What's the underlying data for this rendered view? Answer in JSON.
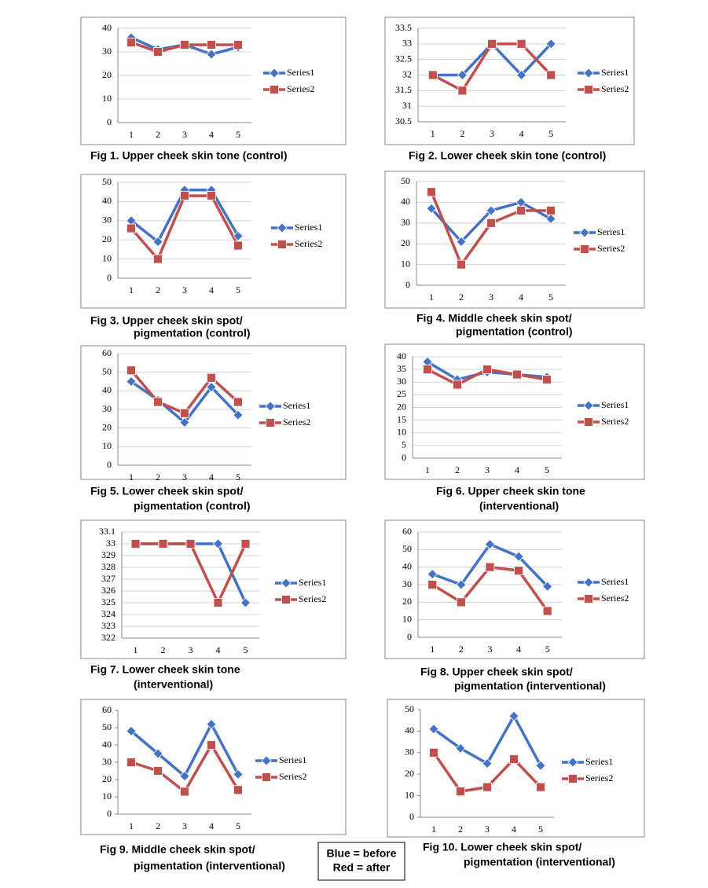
{
  "chart_data": [
    {
      "type": "line",
      "caption": [
        "Fig 1. Upper cheek skin tone (control)"
      ],
      "categories": [
        "1",
        "2",
        "3",
        "4",
        "5"
      ],
      "series": [
        {
          "name": "Series1",
          "color": "#4472c4",
          "marker": "diamond",
          "values": [
            36,
            31,
            33,
            29,
            32
          ]
        },
        {
          "name": "Series2",
          "color": "#c0504d",
          "marker": "square",
          "values": [
            34,
            30,
            33,
            33,
            33
          ]
        }
      ],
      "ylim": [
        0,
        40
      ],
      "yticks": [
        0,
        10,
        20,
        30,
        40
      ],
      "grid": true,
      "legend": "right"
    },
    {
      "type": "line",
      "caption": [
        "Fig 2. Lower cheek skin tone (control)"
      ],
      "categories": [
        "1",
        "2",
        "3",
        "4",
        "5"
      ],
      "series": [
        {
          "name": "Series1",
          "color": "#4472c4",
          "marker": "diamond",
          "values": [
            32,
            32,
            33,
            32,
            33
          ]
        },
        {
          "name": "Series2",
          "color": "#c0504d",
          "marker": "square",
          "values": [
            32,
            31.5,
            33,
            33,
            32
          ]
        }
      ],
      "ylim": [
        30.5,
        33.5
      ],
      "yticks": [
        30.5,
        31,
        31.5,
        32,
        32.5,
        33,
        33.5
      ],
      "grid": true,
      "legend": "right"
    },
    {
      "type": "line",
      "caption": [
        "Fig 3. Upper cheek skin spot/",
        "pigmentation (control)"
      ],
      "categories": [
        "1",
        "2",
        "3",
        "4",
        "5"
      ],
      "series": [
        {
          "name": "Series1",
          "color": "#4472c4",
          "marker": "diamond",
          "values": [
            30,
            19,
            46,
            46,
            22
          ]
        },
        {
          "name": "Series2",
          "color": "#c0504d",
          "marker": "square",
          "values": [
            26,
            10,
            43,
            43,
            17
          ]
        }
      ],
      "ylim": [
        0,
        50
      ],
      "yticks": [
        0,
        10,
        20,
        30,
        40,
        50
      ],
      "grid": true,
      "legend": "right"
    },
    {
      "type": "line",
      "caption": [
        "Fig 4. Middle cheek skin spot/",
        "pigmentation (control)"
      ],
      "categories": [
        "1",
        "2",
        "3",
        "4",
        "5"
      ],
      "series": [
        {
          "name": "Series1",
          "color": "#4472c4",
          "marker": "diamond",
          "values": [
            37,
            21,
            36,
            40,
            32
          ]
        },
        {
          "name": "Series2",
          "color": "#c0504d",
          "marker": "square",
          "values": [
            45,
            10,
            30,
            36,
            36
          ]
        }
      ],
      "ylim": [
        0,
        50
      ],
      "yticks": [
        0,
        10,
        20,
        30,
        40,
        50
      ],
      "grid": true,
      "legend": "right"
    },
    {
      "type": "line",
      "caption": [
        "Fig 5. Lower cheek skin spot/",
        "pigmentation (control)"
      ],
      "categories": [
        "1",
        "2",
        "3",
        "4",
        "5"
      ],
      "series": [
        {
          "name": "Series1",
          "color": "#4472c4",
          "marker": "diamond",
          "values": [
            45,
            35,
            23,
            42,
            27
          ]
        },
        {
          "name": "Series2",
          "color": "#c0504d",
          "marker": "square",
          "values": [
            51,
            34,
            28,
            47,
            34
          ]
        }
      ],
      "ylim": [
        0,
        60
      ],
      "yticks": [
        0,
        10,
        20,
        30,
        40,
        50,
        60
      ],
      "grid": true,
      "legend": "right"
    },
    {
      "type": "line",
      "caption": [
        "Fig 6. Upper cheek skin tone",
        "(interventional)"
      ],
      "categories": [
        "1",
        "2",
        "3",
        "4",
        "5"
      ],
      "series": [
        {
          "name": "Series1",
          "color": "#4472c4",
          "marker": "diamond",
          "values": [
            38,
            31,
            34,
            33,
            32
          ]
        },
        {
          "name": "Series2",
          "color": "#c0504d",
          "marker": "square",
          "values": [
            35,
            29,
            35,
            33,
            31
          ]
        }
      ],
      "ylim": [
        0,
        40
      ],
      "yticks": [
        0,
        5,
        10,
        15,
        20,
        25,
        30,
        35,
        40
      ],
      "grid": true,
      "legend": "right"
    },
    {
      "type": "line",
      "caption": [
        "Fig 7. Lower cheek skin tone",
        "(interventional)"
      ],
      "categories": [
        "1",
        "2",
        "3",
        "4",
        "5"
      ],
      "series": [
        {
          "name": "Series1",
          "color": "#4472c4",
          "marker": "diamond",
          "values": [
            33,
            33,
            33,
            33,
            32.5
          ]
        },
        {
          "name": "Series2",
          "color": "#c0504d",
          "marker": "square",
          "values": [
            33,
            33,
            33,
            32.5,
            33
          ]
        }
      ],
      "ylim": [
        32.2,
        33.1
      ],
      "yticks": [
        {
          "value": 32.2,
          "label": "322"
        },
        {
          "value": 32.3,
          "label": "323"
        },
        {
          "value": 32.4,
          "label": "324"
        },
        {
          "value": 32.5,
          "label": "325"
        },
        {
          "value": 32.6,
          "label": "326"
        },
        {
          "value": 32.7,
          "label": "327"
        },
        {
          "value": 32.8,
          "label": "328"
        },
        {
          "value": 32.9,
          "label": "329"
        },
        33,
        33.1
      ],
      "grid": true,
      "legend": "right"
    },
    {
      "type": "line",
      "caption": [
        "Fig 8. Upper cheek skin spot/",
        "pigmentation (interventional)"
      ],
      "categories": [
        "1",
        "2",
        "3",
        "4",
        "5"
      ],
      "series": [
        {
          "name": "Series1",
          "color": "#4472c4",
          "marker": "diamond",
          "values": [
            36,
            30,
            53,
            46,
            29
          ]
        },
        {
          "name": "Series2",
          "color": "#c0504d",
          "marker": "square",
          "values": [
            30,
            20,
            40,
            38,
            15
          ]
        }
      ],
      "ylim": [
        0,
        60
      ],
      "yticks": [
        0,
        10,
        20,
        30,
        40,
        50,
        60
      ],
      "grid": true,
      "legend": "right"
    },
    {
      "type": "line",
      "caption": [
        "Fig 9. Middle cheek skin spot/",
        "pigmentation (interventional)"
      ],
      "categories": [
        "1",
        "2",
        "3",
        "4",
        "5"
      ],
      "series": [
        {
          "name": "Series1",
          "color": "#4472c4",
          "marker": "diamond",
          "values": [
            48,
            35,
            22,
            52,
            23
          ]
        },
        {
          "name": "Series2",
          "color": "#c0504d",
          "marker": "square",
          "values": [
            30,
            25,
            13,
            40,
            14
          ]
        }
      ],
      "ylim": [
        0,
        60
      ],
      "yticks": [
        0,
        10,
        20,
        30,
        40,
        50,
        60
      ],
      "grid": false,
      "legend": "right"
    },
    {
      "type": "line",
      "caption": [
        "Fig 10. Lower cheek skin spot/",
        "pigmentation (interventional)"
      ],
      "categories": [
        "1",
        "2",
        "3",
        "4",
        "5"
      ],
      "series": [
        {
          "name": "Series1",
          "color": "#4472c4",
          "marker": "diamond",
          "values": [
            41,
            32,
            25,
            47,
            24
          ]
        },
        {
          "name": "Series2",
          "color": "#c0504d",
          "marker": "square",
          "values": [
            30,
            12,
            14,
            27,
            14
          ]
        }
      ],
      "ylim": [
        0,
        50
      ],
      "yticks": [
        0,
        10,
        20,
        30,
        40,
        50
      ],
      "grid": false,
      "legend": "right"
    }
  ],
  "note": [
    "Blue = before",
    "Red = after"
  ]
}
